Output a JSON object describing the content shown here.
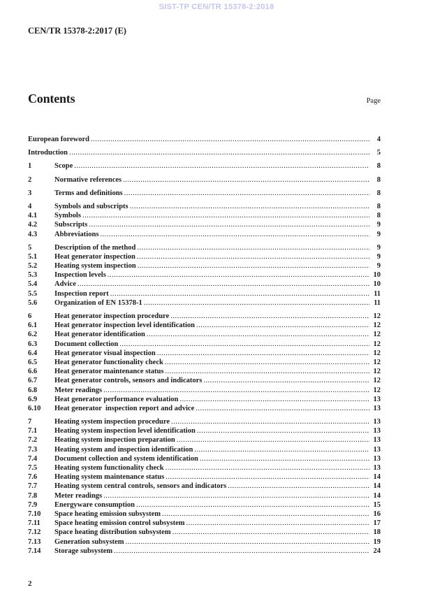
{
  "header": {
    "watermark": "SIST-TP CEN/TR 15378-2:2018",
    "document_reference": "CEN/TR 15378-2:2017 (E)"
  },
  "colors": {
    "watermark": "#c4c5ee",
    "text": "#1b1b1b"
  },
  "contents": {
    "title": "Contents",
    "page_label": "Page",
    "entries": [
      {
        "num": "",
        "title": "European foreword",
        "page": "4",
        "major": true
      },
      {
        "num": "",
        "title": "Introduction",
        "page": "5",
        "major": true
      },
      {
        "num": "1",
        "title": "Scope",
        "page": "8",
        "major": true
      },
      {
        "num": "2",
        "title": "Normative references",
        "page": "8",
        "major": true
      },
      {
        "num": "3",
        "title": "Terms and definitions",
        "page": "8",
        "major": true
      },
      {
        "num": "4",
        "title": "Symbols and subscripts",
        "page": "8",
        "major": true
      },
      {
        "num": "4.1",
        "title": "Symbols",
        "page": "8",
        "major": false
      },
      {
        "num": "4.2",
        "title": "Subscripts",
        "page": "9",
        "major": false
      },
      {
        "num": "4.3",
        "title": "Abbreviations",
        "page": "9",
        "major": false
      },
      {
        "num": "5",
        "title": "Description of the method",
        "page": "9",
        "major": true
      },
      {
        "num": "5.1",
        "title": "Heat generator inspection",
        "page": "9",
        "major": false
      },
      {
        "num": "5.2",
        "title": "Heating system inspection",
        "page": "9",
        "major": false
      },
      {
        "num": "5.3",
        "title": "Inspection levels",
        "page": "10",
        "major": false
      },
      {
        "num": "5.4",
        "title": "Advice",
        "page": "10",
        "major": false
      },
      {
        "num": "5.5",
        "title": "Inspection report",
        "page": "11",
        "major": false
      },
      {
        "num": "5.6",
        "title": "Organization of EN 15378-1",
        "page": "11",
        "major": false
      },
      {
        "num": "6",
        "title": "Heat generator inspection procedure",
        "page": "12",
        "major": true
      },
      {
        "num": "6.1",
        "title": "Heat generator inspection level identification",
        "page": "12",
        "major": false
      },
      {
        "num": "6.2",
        "title": "Heat generator identification",
        "page": "12",
        "major": false
      },
      {
        "num": "6.3",
        "title": "Document collection",
        "page": "12",
        "major": false
      },
      {
        "num": "6.4",
        "title": "Heat generator visual inspection",
        "page": "12",
        "major": false
      },
      {
        "num": "6.5",
        "title": "Heat generator functionality check",
        "page": "12",
        "major": false
      },
      {
        "num": "6.6",
        "title": "Heat generator maintenance status",
        "page": "12",
        "major": false
      },
      {
        "num": "6.7",
        "title": "Heat generator controls, sensors and indicators",
        "page": "12",
        "major": false
      },
      {
        "num": "6.8",
        "title": "Meter readings",
        "page": "12",
        "major": false
      },
      {
        "num": "6.9",
        "title": "Heat generator performance evaluation",
        "page": "13",
        "major": false
      },
      {
        "num": "6.10",
        "title": "Heat generator  inspection report and advice",
        "page": "13",
        "major": false
      },
      {
        "num": "7",
        "title": "Heating system inspection procedure",
        "page": "13",
        "major": true
      },
      {
        "num": "7.1",
        "title": "Heating system inspection level identification",
        "page": "13",
        "major": false
      },
      {
        "num": "7.2",
        "title": "Heating system inspection preparation",
        "page": "13",
        "major": false
      },
      {
        "num": "7.3",
        "title": "Heating system and inspection identification",
        "page": "13",
        "major": false
      },
      {
        "num": "7.4",
        "title": "Document collection and system identification",
        "page": "13",
        "major": false
      },
      {
        "num": "7.5",
        "title": "Heating system functionality check",
        "page": "13",
        "major": false
      },
      {
        "num": "7.6",
        "title": "Heating system maintenance status",
        "page": "14",
        "major": false
      },
      {
        "num": "7.7",
        "title": "Heating system central controls, sensors and indicators",
        "page": "14",
        "major": false
      },
      {
        "num": "7.8",
        "title": "Meter readings",
        "page": "14",
        "major": false
      },
      {
        "num": "7.9",
        "title": "Energyware consumption",
        "page": "15",
        "major": false
      },
      {
        "num": "7.10",
        "title": "Space heating emission subsystem",
        "page": "16",
        "major": false
      },
      {
        "num": "7.11",
        "title": "Space heating emission control subsystem",
        "page": "17",
        "major": false
      },
      {
        "num": "7.12",
        "title": "Space heating distribution subsystem",
        "page": "18",
        "major": false
      },
      {
        "num": "7.13",
        "title": "Generation subsystem",
        "page": "19",
        "major": false
      },
      {
        "num": "7.14",
        "title": "Storage subsystem",
        "page": "24",
        "major": false
      }
    ]
  },
  "footer": {
    "page_number": "2"
  }
}
